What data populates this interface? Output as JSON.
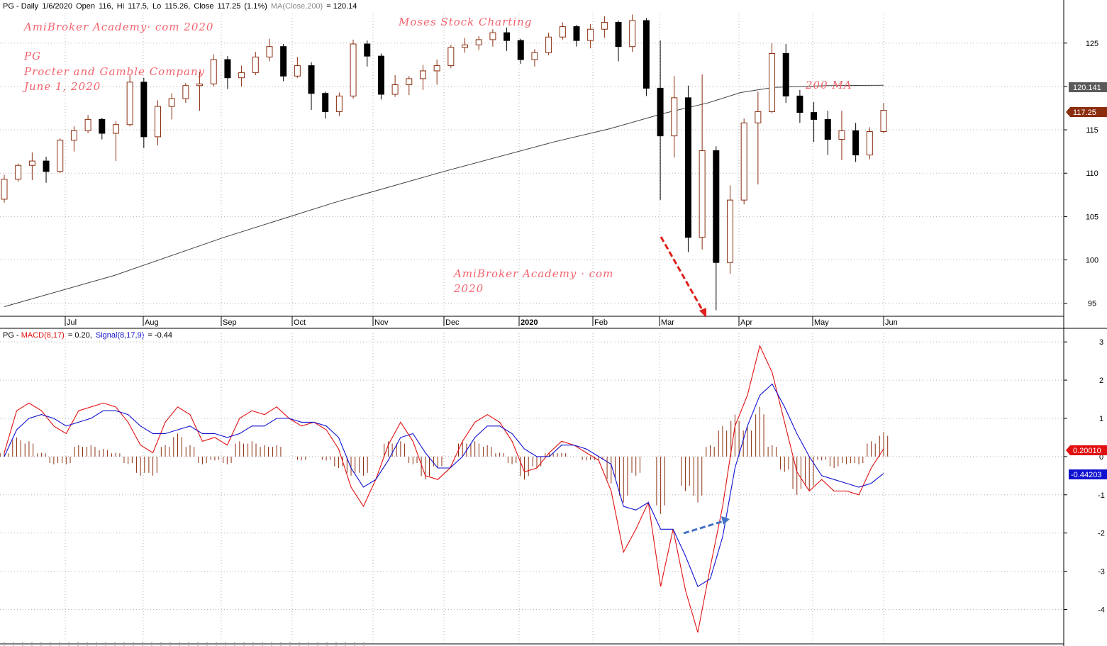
{
  "price_panel": {
    "header": {
      "symbol": "PG",
      "sep": " - ",
      "period": "Daily",
      "date": "1/6/2020",
      "open_label": "Open",
      "open": "116",
      "high_label": "Hi",
      "high": "117.5",
      "low_label": "Lo",
      "low": "115.26",
      "close_label": "Close",
      "close": "117.25",
      "change": "(1.1%)",
      "ma_label": "MA(Close,200)",
      "ma_value": "= 120.14"
    },
    "price_tag_ma": "120.141",
    "price_tag_close": "117.25"
  },
  "macd_panel": {
    "header": {
      "symbol": "PG",
      "sep": " - ",
      "macd_label": "MACD(8,17)",
      "macd_value": "= 0.20,",
      "signal_label": "Signal(8,17,9)",
      "signal_value": "= -0.44"
    },
    "tag_macd": "0.20010",
    "tag_signal": "-0.44203"
  },
  "watermarks": {
    "top_left_1": "AmiBroker Academy· com 2020",
    "top_center": "Moses Stock Charting",
    "symbol": "PG",
    "company": "Procter and Gamble Company",
    "date": "June 1, 2020",
    "ma_note": "200 MA",
    "mid_line1": "AmiBroker Academy · com",
    "mid_line2": "2020"
  },
  "colors": {
    "up_candle": "#8b2e0f",
    "down_candle": "#000000",
    "ma_line": "#404040",
    "macd_line": "#e01010",
    "signal_line": "#1010d0",
    "histogram": "#8b2e0f",
    "annotation_red": "#e0201a",
    "annotation_blue": "#4472c4",
    "watermark": "#f2636d",
    "tag_close_bg": "#8b2e0f",
    "tag_ma_bg": "#5a5a5a",
    "tag_macd_bg": "#e01010",
    "tag_signal_bg": "#1010d0"
  },
  "chart_data": [
    {
      "type": "candlestick",
      "title": "PG - Daily",
      "x_labels": [
        "Jul",
        "Aug",
        "Sep",
        "Oct",
        "Nov",
        "Dec",
        "2020",
        "Feb",
        "Mar",
        "Apr",
        "May",
        "Jun"
      ],
      "y_ticks": [
        95,
        100,
        105,
        110,
        115,
        120,
        125
      ],
      "ylim": [
        93.5,
        128.5
      ],
      "grid": true,
      "ohlc_weekly": [
        {
          "o": 107.0,
          "h": 109.8,
          "l": 106.6,
          "c": 109.3
        },
        {
          "o": 109.3,
          "h": 111.1,
          "l": 109.0,
          "c": 110.9
        },
        {
          "o": 110.9,
          "h": 112.4,
          "l": 109.2,
          "c": 111.4
        },
        {
          "o": 111.4,
          "h": 111.9,
          "l": 108.9,
          "c": 110.2
        },
        {
          "o": 110.2,
          "h": 114.0,
          "l": 110.0,
          "c": 113.8
        },
        {
          "o": 113.8,
          "h": 115.4,
          "l": 112.5,
          "c": 114.9
        },
        {
          "o": 114.9,
          "h": 116.7,
          "l": 114.6,
          "c": 116.2
        },
        {
          "o": 116.2,
          "h": 116.4,
          "l": 113.9,
          "c": 114.6
        },
        {
          "o": 114.6,
          "h": 116.0,
          "l": 111.4,
          "c": 115.6
        },
        {
          "o": 115.6,
          "h": 121.3,
          "l": 115.4,
          "c": 120.5
        },
        {
          "o": 120.5,
          "h": 121.0,
          "l": 112.9,
          "c": 114.2
        },
        {
          "o": 114.2,
          "h": 118.4,
          "l": 113.2,
          "c": 117.7
        },
        {
          "o": 117.7,
          "h": 119.2,
          "l": 116.2,
          "c": 118.6
        },
        {
          "o": 118.6,
          "h": 120.4,
          "l": 118.1,
          "c": 120.1
        },
        {
          "o": 120.1,
          "h": 121.7,
          "l": 117.2,
          "c": 120.3
        },
        {
          "o": 120.3,
          "h": 123.7,
          "l": 120.0,
          "c": 123.1
        },
        {
          "o": 123.1,
          "h": 123.5,
          "l": 119.7,
          "c": 121.0
        },
        {
          "o": 121.0,
          "h": 122.4,
          "l": 120.0,
          "c": 121.6
        },
        {
          "o": 121.6,
          "h": 124.0,
          "l": 121.3,
          "c": 123.4
        },
        {
          "o": 123.4,
          "h": 125.5,
          "l": 122.9,
          "c": 124.6
        },
        {
          "o": 124.6,
          "h": 124.9,
          "l": 120.6,
          "c": 121.2
        },
        {
          "o": 121.2,
          "h": 123.4,
          "l": 121.0,
          "c": 122.4
        },
        {
          "o": 122.4,
          "h": 122.8,
          "l": 117.3,
          "c": 119.2
        },
        {
          "o": 119.2,
          "h": 119.4,
          "l": 116.3,
          "c": 117.1
        },
        {
          "o": 117.1,
          "h": 119.3,
          "l": 116.6,
          "c": 118.9
        },
        {
          "o": 118.9,
          "h": 125.4,
          "l": 118.6,
          "c": 124.9
        },
        {
          "o": 124.9,
          "h": 125.3,
          "l": 122.3,
          "c": 123.5
        },
        {
          "o": 123.5,
          "h": 123.8,
          "l": 118.5,
          "c": 119.1
        },
        {
          "o": 119.1,
          "h": 121.3,
          "l": 118.8,
          "c": 120.2
        },
        {
          "o": 120.2,
          "h": 121.2,
          "l": 119.0,
          "c": 120.9
        },
        {
          "o": 120.9,
          "h": 122.5,
          "l": 119.6,
          "c": 121.8
        },
        {
          "o": 121.8,
          "h": 123.1,
          "l": 120.2,
          "c": 122.4
        },
        {
          "o": 122.4,
          "h": 124.8,
          "l": 122.1,
          "c": 124.5
        },
        {
          "o": 124.5,
          "h": 125.6,
          "l": 123.9,
          "c": 124.8
        },
        {
          "o": 124.8,
          "h": 125.8,
          "l": 124.2,
          "c": 125.4
        },
        {
          "o": 125.4,
          "h": 126.6,
          "l": 124.6,
          "c": 126.2
        },
        {
          "o": 126.2,
          "h": 126.8,
          "l": 124.1,
          "c": 125.3
        },
        {
          "o": 125.3,
          "h": 125.5,
          "l": 122.6,
          "c": 123.1
        },
        {
          "o": 123.1,
          "h": 124.3,
          "l": 122.3,
          "c": 123.9
        },
        {
          "o": 123.9,
          "h": 126.2,
          "l": 123.6,
          "c": 125.7
        },
        {
          "o": 125.7,
          "h": 127.4,
          "l": 125.4,
          "c": 126.9
        },
        {
          "o": 126.9,
          "h": 127.1,
          "l": 124.6,
          "c": 125.3
        },
        {
          "o": 125.3,
          "h": 127.2,
          "l": 124.4,
          "c": 126.6
        },
        {
          "o": 126.6,
          "h": 128.1,
          "l": 125.6,
          "c": 127.4
        },
        {
          "o": 127.4,
          "h": 127.6,
          "l": 122.9,
          "c": 124.6
        },
        {
          "o": 124.6,
          "h": 128.3,
          "l": 124.0,
          "c": 127.6
        },
        {
          "o": 127.6,
          "h": 127.9,
          "l": 118.9,
          "c": 119.8
        },
        {
          "o": 119.8,
          "h": 125.3,
          "l": 106.9,
          "c": 114.3
        },
        {
          "o": 114.3,
          "h": 121.2,
          "l": 111.8,
          "c": 118.7
        },
        {
          "o": 118.7,
          "h": 120.1,
          "l": 100.9,
          "c": 102.6
        },
        {
          "o": 102.6,
          "h": 121.4,
          "l": 101.2,
          "c": 112.6
        },
        {
          "o": 112.6,
          "h": 113.1,
          "l": 94.2,
          "c": 99.7
        },
        {
          "o": 99.7,
          "h": 108.6,
          "l": 98.4,
          "c": 106.9
        },
        {
          "o": 106.9,
          "h": 116.3,
          "l": 106.4,
          "c": 115.8
        },
        {
          "o": 115.8,
          "h": 119.4,
          "l": 108.7,
          "c": 117.1
        },
        {
          "o": 117.1,
          "h": 125.0,
          "l": 116.9,
          "c": 123.8
        },
        {
          "o": 123.8,
          "h": 124.9,
          "l": 118.1,
          "c": 118.9
        },
        {
          "o": 118.9,
          "h": 119.6,
          "l": 115.8,
          "c": 117.0
        },
        {
          "o": 117.0,
          "h": 118.2,
          "l": 113.6,
          "c": 116.2
        },
        {
          "o": 116.2,
          "h": 117.2,
          "l": 112.1,
          "c": 113.9
        },
        {
          "o": 113.9,
          "h": 117.2,
          "l": 111.5,
          "c": 114.9
        },
        {
          "o": 114.9,
          "h": 115.8,
          "l": 111.3,
          "c": 112.1
        },
        {
          "o": 112.1,
          "h": 115.3,
          "l": 111.6,
          "c": 114.8
        },
        {
          "o": 114.8,
          "h": 118.1,
          "l": 114.6,
          "c": 117.25
        }
      ],
      "ma200": [
        {
          "i": 0,
          "v": 94.6
        },
        {
          "i": 10,
          "v": 98.2
        },
        {
          "i": 20,
          "v": 102.6
        },
        {
          "i": 30,
          "v": 106.6
        },
        {
          "i": 40,
          "v": 110.2
        },
        {
          "i": 50,
          "v": 113.6
        },
        {
          "i": 55,
          "v": 115.1
        },
        {
          "i": 60,
          "v": 116.9
        },
        {
          "i": 64,
          "v": 118.1
        },
        {
          "i": 67,
          "v": 119.3
        },
        {
          "i": 70,
          "v": 119.9
        },
        {
          "i": 75,
          "v": 120.1
        },
        {
          "i": 80,
          "v": 120.14
        }
      ]
    },
    {
      "type": "line",
      "title": "PG - MACD(8,17), Signal(8,17,9)",
      "y_ticks": [
        -4,
        -3,
        -2,
        -1,
        0,
        1,
        2,
        3
      ],
      "ylim": [
        -4.9,
        3.3
      ],
      "series": [
        {
          "name": "MACD(8,17)",
          "values": [
            0.1,
            1.2,
            1.4,
            1.2,
            0.8,
            0.6,
            1.2,
            1.3,
            1.4,
            1.3,
            0.9,
            0.3,
            0.1,
            0.9,
            1.3,
            1.1,
            0.4,
            0.5,
            0.3,
            1.0,
            1.2,
            1.1,
            1.3,
            1.0,
            0.8,
            0.9,
            0.7,
            0.2,
            -0.8,
            -1.3,
            -0.6,
            0.3,
            0.9,
            0.4,
            -0.5,
            -0.6,
            -0.3,
            0.4,
            0.9,
            1.1,
            0.9,
            0.4,
            -0.4,
            -0.3,
            0.1,
            0.4,
            0.3,
            0.1,
            -0.1,
            -0.9,
            -2.5,
            -1.9,
            -1.2,
            -3.4,
            -1.9,
            -3.5,
            -4.6,
            -2.9,
            -1.3,
            0.8,
            1.6,
            2.9,
            2.2,
            0.9,
            -0.4,
            -0.9,
            -0.6,
            -0.9,
            -0.9,
            -1.0,
            -0.3,
            0.2
          ]
        },
        {
          "name": "Signal(8,17,9)",
          "values": [
            0.0,
            0.7,
            1.0,
            1.1,
            1.0,
            0.8,
            0.9,
            1.0,
            1.2,
            1.2,
            1.1,
            0.8,
            0.6,
            0.6,
            0.7,
            0.8,
            0.6,
            0.6,
            0.5,
            0.6,
            0.8,
            0.8,
            1.0,
            1.0,
            0.9,
            0.9,
            0.8,
            0.5,
            -0.3,
            -0.8,
            -0.6,
            -0.1,
            0.5,
            0.6,
            0.1,
            -0.3,
            -0.3,
            0.0,
            0.5,
            0.8,
            0.8,
            0.6,
            0.2,
            0.0,
            0.0,
            0.3,
            0.3,
            0.2,
            0.0,
            -0.2,
            -1.3,
            -1.4,
            -1.2,
            -1.9,
            -1.9,
            -2.6,
            -3.4,
            -3.2,
            -2.1,
            -0.3,
            0.8,
            1.6,
            1.9,
            1.3,
            0.6,
            0.0,
            -0.5,
            -0.6,
            -0.7,
            -0.8,
            -0.7,
            -0.44
          ]
        }
      ],
      "histogram": [
        0.1,
        0.5,
        0.4,
        0.1,
        -0.2,
        -0.2,
        0.3,
        0.3,
        0.2,
        0.1,
        -0.2,
        -0.5,
        -0.5,
        0.3,
        0.6,
        0.3,
        -0.2,
        -0.1,
        -0.2,
        0.4,
        0.4,
        0.3,
        0.3,
        0.0,
        -0.1,
        0.0,
        -0.1,
        -0.3,
        -0.5,
        -0.5,
        0.0,
        0.4,
        0.4,
        -0.2,
        -0.6,
        -0.3,
        0.0,
        0.4,
        0.4,
        0.3,
        0.1,
        -0.2,
        -0.6,
        -0.3,
        0.1,
        0.1,
        0.0,
        -0.1,
        -0.1,
        -0.7,
        -1.2,
        -0.5,
        0.0,
        -1.5,
        0.0,
        -0.9,
        -1.2,
        0.3,
        0.8,
        1.1,
        0.8,
        1.3,
        0.3,
        -0.4,
        -1.0,
        -0.9,
        -0.1,
        -0.3,
        -0.2,
        -0.2,
        0.4,
        0.64
      ]
    }
  ]
}
